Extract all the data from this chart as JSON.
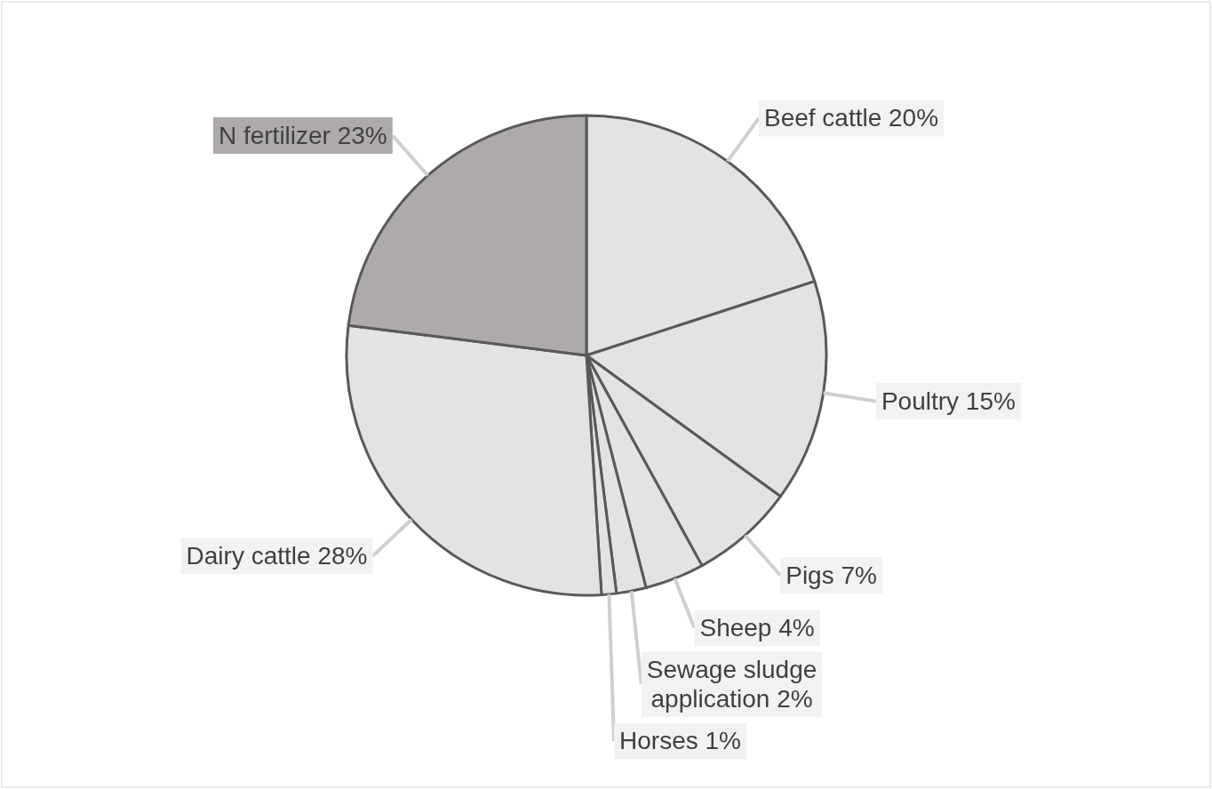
{
  "chart_data": {
    "type": "pie",
    "categories": [
      "Beef cattle",
      "Poultry",
      "Pigs",
      "Sheep",
      "Sewage sludge application",
      "Horses",
      "Dairy cattle",
      "N fertilizer"
    ],
    "values": [
      20,
      15,
      7,
      4,
      2,
      1,
      28,
      23
    ],
    "value_labels": [
      "20%",
      "15%",
      "7%",
      "4%",
      "2%",
      "1%",
      "28%",
      "23%"
    ],
    "colors": [
      "#e3e3e3",
      "#e3e3e3",
      "#e3e3e3",
      "#e3e3e3",
      "#e3e3e3",
      "#e3e3e3",
      "#e3e3e3",
      "#aeaaaa"
    ]
  }
}
